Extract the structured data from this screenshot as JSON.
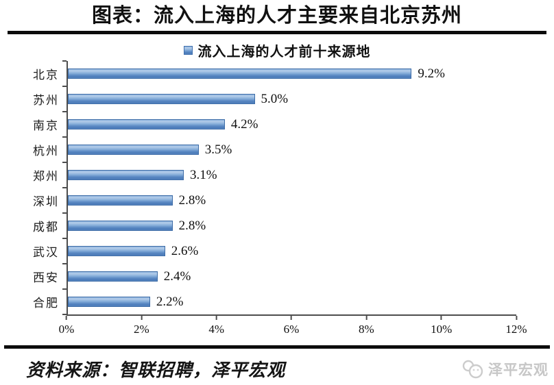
{
  "header": {
    "title": "图表：流入上海的人才主要来自北京苏州"
  },
  "chart_data": {
    "type": "bar",
    "orientation": "horizontal",
    "title": "流入上海的人才前十来源地",
    "legend": "流入上海的人才前十来源地",
    "legend_position": "top-center",
    "categories": [
      "北京",
      "苏州",
      "南京",
      "杭州",
      "郑州",
      "深圳",
      "成都",
      "武汉",
      "西安",
      "合肥"
    ],
    "values": [
      9.2,
      5.0,
      4.2,
      3.5,
      3.1,
      2.8,
      2.8,
      2.6,
      2.4,
      2.2
    ],
    "value_labels": [
      "9.2%",
      "5.0%",
      "4.2%",
      "3.5%",
      "3.1%",
      "2.8%",
      "2.8%",
      "2.6%",
      "2.4%",
      "2.2%"
    ],
    "xlabel": "",
    "ylabel": "",
    "x_axis": {
      "min": 0,
      "max": 12,
      "ticks": [
        "0%",
        "2%",
        "4%",
        "6%",
        "8%",
        "10%",
        "12%"
      ]
    },
    "grid": false,
    "colors": {
      "bar_fill": "#5e8cc6",
      "bar_border": "#3c6ba6",
      "axis": "#4d4d4d",
      "rule": "#0c0c0c",
      "watermark": "#c7c7c7"
    }
  },
  "footer": {
    "source": "资料来源：智联招聘，泽平宏观",
    "watermark": "泽平宏观"
  }
}
